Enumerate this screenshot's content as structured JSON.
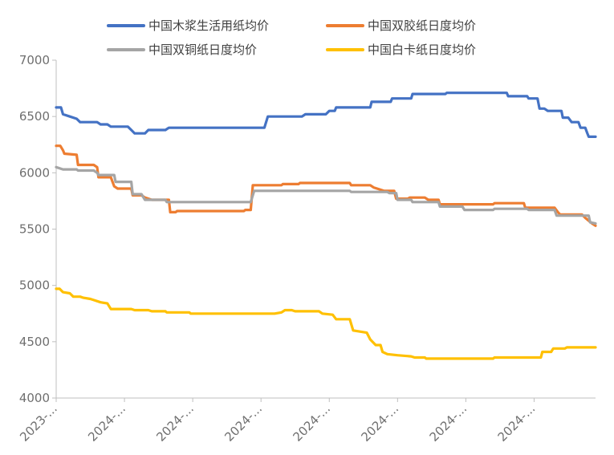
{
  "chart_data": {
    "type": "line",
    "title": "",
    "xlabel": "",
    "ylabel": "",
    "ylim": [
      4000,
      7000
    ],
    "yticks": [
      4000,
      4500,
      5000,
      5500,
      6000,
      6500,
      7000
    ],
    "x_tick_labels": [
      "2023-...",
      "2024-...",
      "2024-...",
      "2024-...",
      "2024-...",
      "2024-...",
      "2024-...",
      "2024-..."
    ],
    "x_tick_positions": [
      0,
      1,
      2,
      3,
      4,
      5,
      6,
      7
    ],
    "x_range": [
      0,
      7.9
    ],
    "grid": false,
    "legend": "top",
    "series": [
      {
        "name": "中国木浆生活用纸均价",
        "color": "#4472C4",
        "points": [
          [
            0,
            6580
          ],
          [
            0.07,
            6580
          ],
          [
            0.1,
            6520
          ],
          [
            0.2,
            6500
          ],
          [
            0.3,
            6480
          ],
          [
            0.35,
            6450
          ],
          [
            0.6,
            6450
          ],
          [
            0.65,
            6430
          ],
          [
            0.75,
            6430
          ],
          [
            0.8,
            6410
          ],
          [
            1.05,
            6410
          ],
          [
            1.1,
            6380
          ],
          [
            1.15,
            6350
          ],
          [
            1.3,
            6350
          ],
          [
            1.35,
            6380
          ],
          [
            1.6,
            6380
          ],
          [
            1.65,
            6400
          ],
          [
            3.05,
            6400
          ],
          [
            3.1,
            6500
          ],
          [
            3.6,
            6500
          ],
          [
            3.65,
            6520
          ],
          [
            3.95,
            6520
          ],
          [
            4.0,
            6550
          ],
          [
            4.08,
            6550
          ],
          [
            4.1,
            6580
          ],
          [
            4.6,
            6580
          ],
          [
            4.62,
            6630
          ],
          [
            4.9,
            6630
          ],
          [
            4.92,
            6660
          ],
          [
            5.2,
            6660
          ],
          [
            5.22,
            6700
          ],
          [
            5.7,
            6700
          ],
          [
            5.72,
            6710
          ],
          [
            6.6,
            6710
          ],
          [
            6.62,
            6680
          ],
          [
            6.9,
            6680
          ],
          [
            6.92,
            6660
          ],
          [
            7.05,
            6660
          ],
          [
            7.08,
            6570
          ],
          [
            7.15,
            6570
          ],
          [
            7.2,
            6550
          ],
          [
            7.4,
            6550
          ],
          [
            7.42,
            6490
          ],
          [
            7.5,
            6490
          ],
          [
            7.55,
            6450
          ],
          [
            7.65,
            6450
          ],
          [
            7.68,
            6400
          ],
          [
            7.75,
            6400
          ],
          [
            7.78,
            6350
          ],
          [
            7.8,
            6320
          ],
          [
            7.9,
            6320
          ]
        ]
      },
      {
        "name": "中国双胶纸日度均价",
        "color": "#ED7D31",
        "points": [
          [
            0,
            6240
          ],
          [
            0.06,
            6240
          ],
          [
            0.1,
            6200
          ],
          [
            0.12,
            6170
          ],
          [
            0.3,
            6160
          ],
          [
            0.32,
            6070
          ],
          [
            0.55,
            6070
          ],
          [
            0.6,
            6050
          ],
          [
            0.62,
            5960
          ],
          [
            0.8,
            5960
          ],
          [
            0.85,
            5880
          ],
          [
            0.9,
            5860
          ],
          [
            1.1,
            5860
          ],
          [
            1.12,
            5800
          ],
          [
            1.25,
            5800
          ],
          [
            1.3,
            5780
          ],
          [
            1.4,
            5760
          ],
          [
            1.65,
            5760
          ],
          [
            1.67,
            5650
          ],
          [
            1.75,
            5650
          ],
          [
            1.77,
            5660
          ],
          [
            2.75,
            5660
          ],
          [
            2.77,
            5670
          ],
          [
            2.85,
            5670
          ],
          [
            2.88,
            5890
          ],
          [
            3.3,
            5890
          ],
          [
            3.32,
            5900
          ],
          [
            3.55,
            5900
          ],
          [
            3.57,
            5910
          ],
          [
            4.3,
            5910
          ],
          [
            4.32,
            5890
          ],
          [
            4.6,
            5890
          ],
          [
            4.65,
            5870
          ],
          [
            4.75,
            5850
          ],
          [
            4.8,
            5840
          ],
          [
            4.95,
            5840
          ],
          [
            4.98,
            5770
          ],
          [
            5.15,
            5770
          ],
          [
            5.18,
            5780
          ],
          [
            5.4,
            5780
          ],
          [
            5.45,
            5760
          ],
          [
            5.6,
            5760
          ],
          [
            5.62,
            5720
          ],
          [
            6.4,
            5720
          ],
          [
            6.42,
            5730
          ],
          [
            6.85,
            5730
          ],
          [
            6.87,
            5690
          ],
          [
            7.3,
            5690
          ],
          [
            7.35,
            5650
          ],
          [
            7.38,
            5630
          ],
          [
            7.7,
            5630
          ],
          [
            7.75,
            5600
          ],
          [
            7.85,
            5550
          ],
          [
            7.9,
            5530
          ]
        ]
      },
      {
        "name": "中国双铜纸日度均价",
        "color": "#A5A5A5",
        "points": [
          [
            0,
            6050
          ],
          [
            0.1,
            6030
          ],
          [
            0.3,
            6030
          ],
          [
            0.32,
            6020
          ],
          [
            0.55,
            6020
          ],
          [
            0.6,
            6000
          ],
          [
            0.62,
            5980
          ],
          [
            0.85,
            5980
          ],
          [
            0.87,
            5920
          ],
          [
            1.1,
            5920
          ],
          [
            1.12,
            5810
          ],
          [
            1.25,
            5810
          ],
          [
            1.3,
            5760
          ],
          [
            1.6,
            5760
          ],
          [
            1.62,
            5740
          ],
          [
            2.85,
            5740
          ],
          [
            2.9,
            5840
          ],
          [
            4.3,
            5840
          ],
          [
            4.32,
            5830
          ],
          [
            4.85,
            5830
          ],
          [
            4.88,
            5820
          ],
          [
            4.98,
            5820
          ],
          [
            5.0,
            5760
          ],
          [
            5.2,
            5760
          ],
          [
            5.22,
            5740
          ],
          [
            5.6,
            5740
          ],
          [
            5.62,
            5700
          ],
          [
            5.95,
            5700
          ],
          [
            5.98,
            5670
          ],
          [
            6.4,
            5670
          ],
          [
            6.42,
            5680
          ],
          [
            6.9,
            5680
          ],
          [
            6.92,
            5670
          ],
          [
            7.3,
            5670
          ],
          [
            7.33,
            5620
          ],
          [
            7.8,
            5620
          ],
          [
            7.82,
            5560
          ],
          [
            7.9,
            5550
          ]
        ]
      },
      {
        "name": "中国白卡纸日度均价",
        "color": "#FFC000",
        "points": [
          [
            0,
            4970
          ],
          [
            0.05,
            4970
          ],
          [
            0.1,
            4940
          ],
          [
            0.2,
            4930
          ],
          [
            0.25,
            4900
          ],
          [
            0.35,
            4900
          ],
          [
            0.4,
            4890
          ],
          [
            0.5,
            4880
          ],
          [
            0.55,
            4870
          ],
          [
            0.65,
            4850
          ],
          [
            0.75,
            4840
          ],
          [
            0.8,
            4790
          ],
          [
            1.1,
            4790
          ],
          [
            1.15,
            4780
          ],
          [
            1.35,
            4780
          ],
          [
            1.4,
            4770
          ],
          [
            1.6,
            4770
          ],
          [
            1.62,
            4760
          ],
          [
            1.95,
            4760
          ],
          [
            1.97,
            4750
          ],
          [
            3.2,
            4750
          ],
          [
            3.3,
            4760
          ],
          [
            3.35,
            4780
          ],
          [
            3.45,
            4780
          ],
          [
            3.5,
            4770
          ],
          [
            3.85,
            4770
          ],
          [
            3.9,
            4750
          ],
          [
            4.05,
            4740
          ],
          [
            4.1,
            4700
          ],
          [
            4.3,
            4700
          ],
          [
            4.35,
            4600
          ],
          [
            4.55,
            4580
          ],
          [
            4.6,
            4520
          ],
          [
            4.68,
            4470
          ],
          [
            4.75,
            4470
          ],
          [
            4.78,
            4410
          ],
          [
            4.85,
            4390
          ],
          [
            5.0,
            4380
          ],
          [
            5.2,
            4370
          ],
          [
            5.25,
            4360
          ],
          [
            5.4,
            4360
          ],
          [
            5.42,
            4350
          ],
          [
            6.4,
            4350
          ],
          [
            6.42,
            4360
          ],
          [
            7.1,
            4360
          ],
          [
            7.12,
            4410
          ],
          [
            7.25,
            4410
          ],
          [
            7.28,
            4440
          ],
          [
            7.45,
            4440
          ],
          [
            7.48,
            4450
          ],
          [
            7.9,
            4450
          ]
        ]
      }
    ]
  }
}
